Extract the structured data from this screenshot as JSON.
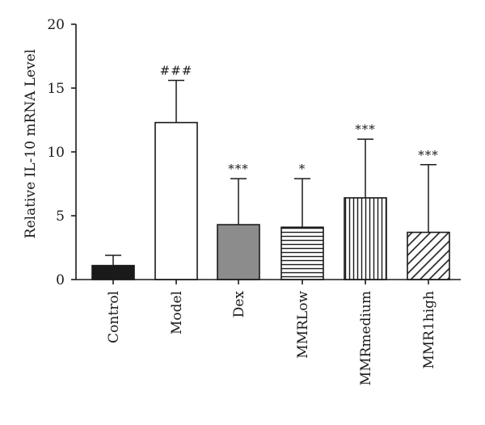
{
  "chart_data": {
    "type": "bar",
    "ylabel": "Relative IL-10 mRNA Level",
    "xlabel": "",
    "ylim": [
      0,
      20
    ],
    "yticks": [
      0,
      5,
      10,
      15,
      20
    ],
    "grid": false,
    "categories": [
      "Control",
      "Model",
      "Dex",
      "MMRLow",
      "MMRmedium",
      "MMR1high"
    ],
    "values": [
      1.1,
      12.3,
      4.3,
      4.1,
      6.4,
      3.7
    ],
    "errors": [
      0.8,
      3.3,
      3.6,
      3.8,
      4.6,
      5.3
    ],
    "significance": [
      "",
      "###",
      "***",
      "*",
      "***",
      "***"
    ],
    "bar_fills": [
      "solid-black",
      "white",
      "solid-gray",
      "horizontal-stripes",
      "vertical-stripes",
      "diagonal-stripes"
    ],
    "colors": {
      "axis": "#1a1a1a",
      "dark_fill": "#1a1a1a",
      "gray_fill": "#8c8c8c"
    }
  }
}
